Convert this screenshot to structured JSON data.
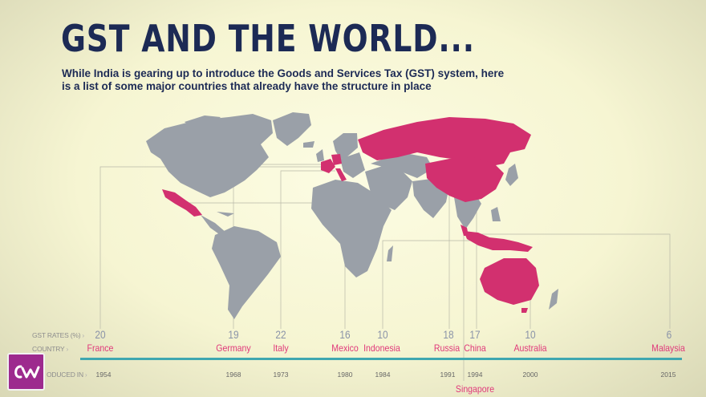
{
  "header": {
    "title": "GST AND THE WORLD...",
    "subtitle": "While India is gearing up to introduce the Goods and Services Tax (GST) system, here is a list of some major countries that already have the structure in place"
  },
  "rows": {
    "rates_label": "GST RATES (%)",
    "country_label": "COUNTRY",
    "introduced_label": "ODUCED IN"
  },
  "countries": [
    {
      "name": "France",
      "rate": "20",
      "year": "1954"
    },
    {
      "name": "Germany",
      "rate": "19",
      "year": "1968"
    },
    {
      "name": "Italy",
      "rate": "22",
      "year": "1973"
    },
    {
      "name": "Mexico",
      "rate": "16",
      "year": "1980"
    },
    {
      "name": "Indonesia",
      "rate": "10",
      "year": "1984"
    },
    {
      "name": "Russia",
      "rate": "18",
      "year": "1991"
    },
    {
      "name": "China",
      "rate": "17",
      "year": "1994"
    },
    {
      "name": "Singapore",
      "rate": "",
      "year": ""
    },
    {
      "name": "Australia",
      "rate": "10",
      "year": "2000"
    },
    {
      "name": "Malaysia",
      "rate": "6",
      "year": "2015"
    }
  ],
  "colors": {
    "land": "#9aa0a8",
    "highlight": "#d2306f",
    "timeline": "#3fa7b0",
    "title": "#1c2a55",
    "logo_bg": "#9d2a8e"
  },
  "logo": {
    "icon": "brand-logo-icon"
  }
}
